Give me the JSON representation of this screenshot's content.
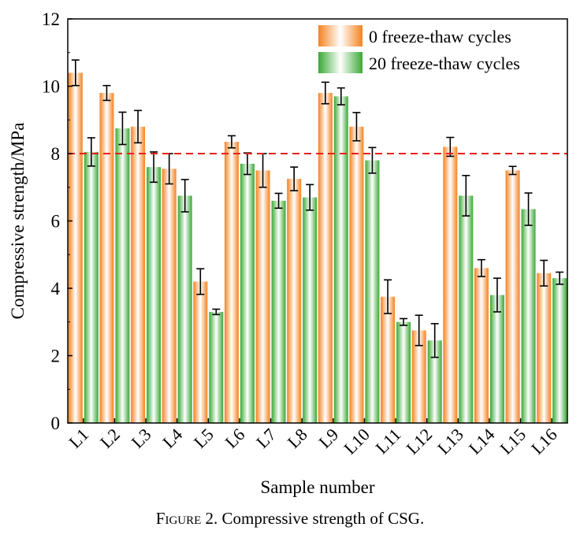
{
  "chart_data": {
    "type": "bar",
    "xlabel": "Sample number",
    "ylabel": "Compressive strength/MPa",
    "ylim": [
      0,
      12
    ],
    "yticks": [
      "0",
      "2",
      "4",
      "6",
      "8",
      "10",
      "12"
    ],
    "categories": [
      "L1",
      "L2",
      "L3",
      "L4",
      "L5",
      "L6",
      "L7",
      "L8",
      "L9",
      "L10",
      "L11",
      "L12",
      "L13",
      "L14",
      "L15",
      "L16"
    ],
    "series": [
      {
        "name": "0 freeze-thaw cycles",
        "color": "#f5821f",
        "values": [
          10.4,
          9.8,
          8.8,
          7.55,
          4.2,
          8.35,
          7.5,
          7.25,
          9.8,
          8.8,
          3.75,
          2.75,
          8.2,
          4.6,
          7.5,
          4.45
        ],
        "errors": [
          0.38,
          0.22,
          0.48,
          0.45,
          0.38,
          0.18,
          0.5,
          0.35,
          0.32,
          0.42,
          0.5,
          0.45,
          0.28,
          0.25,
          0.12,
          0.38
        ]
      },
      {
        "name": "20 freeze-thaw cycles",
        "color": "#3aa935",
        "values": [
          8.05,
          8.75,
          7.6,
          6.75,
          3.3,
          7.7,
          6.6,
          6.7,
          9.7,
          7.8,
          3.0,
          2.45,
          6.75,
          3.8,
          6.35,
          4.3
        ],
        "errors": [
          0.42,
          0.48,
          0.45,
          0.48,
          0.08,
          0.32,
          0.22,
          0.38,
          0.25,
          0.38,
          0.1,
          0.5,
          0.6,
          0.5,
          0.48,
          0.18
        ]
      }
    ],
    "reference_line": {
      "y": 8,
      "color": "#e8201c",
      "style": "dashed"
    },
    "grid": false,
    "legend_position": "top-right"
  },
  "caption": {
    "label": "Figure 2.",
    "text": " Compressive strength of CSG."
  }
}
